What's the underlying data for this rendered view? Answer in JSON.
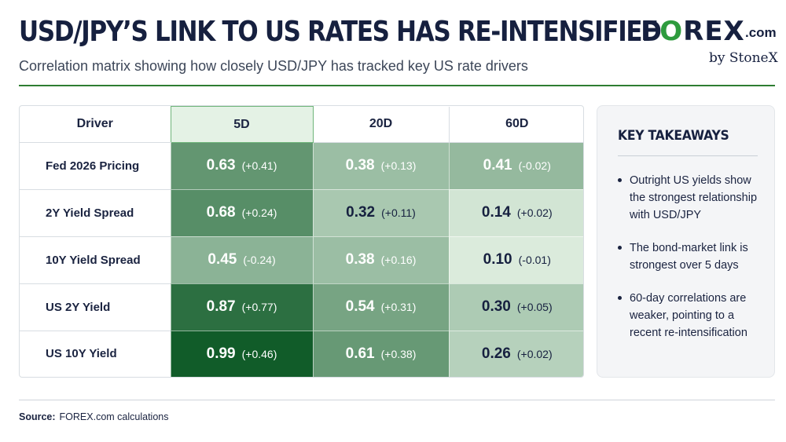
{
  "header": {
    "title": "USD/JPY’S LINK TO US RATES HAS RE-INTENSIFIED",
    "subtitle": "Correlation matrix showing how closely USD/JPY has tracked key US rate drivers"
  },
  "logo": {
    "brand_pre": "F",
    "brand_o": "O",
    "brand_post": "REX",
    "domain": ".com",
    "byline": "by StoneX"
  },
  "colors": {
    "accent": "#2e9b3e",
    "navy": "#16203f",
    "low": "#e6f3e6",
    "high": "#0f5a27"
  },
  "chart_data": {
    "type": "heatmap",
    "title": "USD/JPY’S LINK TO US RATES HAS RE-INTENSIFIED",
    "row_header": "Driver",
    "columns": [
      "5D",
      "20D",
      "60D"
    ],
    "highlight_column": "5D",
    "rows": [
      {
        "driver": "Fed 2026 Pricing",
        "values": [
          0.63,
          0.38,
          0.41
        ],
        "changes": [
          "(+0.41)",
          "(+0.13)",
          "(-0.02)"
        ]
      },
      {
        "driver": "2Y Yield Spread",
        "values": [
          0.68,
          0.32,
          0.14
        ],
        "changes": [
          "(+0.24)",
          "(+0.11)",
          "(+0.02)"
        ]
      },
      {
        "driver": "10Y Yield Spread",
        "values": [
          0.45,
          0.38,
          0.1
        ],
        "changes": [
          "(-0.24)",
          "(+0.16)",
          "(-0.01)"
        ]
      },
      {
        "driver": "US 2Y Yield",
        "values": [
          0.87,
          0.54,
          0.3
        ],
        "changes": [
          "(+0.77)",
          "(+0.31)",
          "(+0.05)"
        ]
      },
      {
        "driver": "US 10Y Yield",
        "values": [
          0.99,
          0.61,
          0.26
        ],
        "changes": [
          "(+0.46)",
          "(+0.38)",
          "(+0.02)"
        ]
      }
    ]
  },
  "takeaways": {
    "title": "KEY TAKEAWAYS",
    "items": [
      "Outright US yields show the strongest relationship with USD/JPY",
      "The bond-market link is strongest over 5 days",
      "60-day correlations are weaker, pointing to a recent re-intensification"
    ]
  },
  "footer": {
    "source_label": "Source:",
    "source_text": "FOREX.com calculations"
  }
}
